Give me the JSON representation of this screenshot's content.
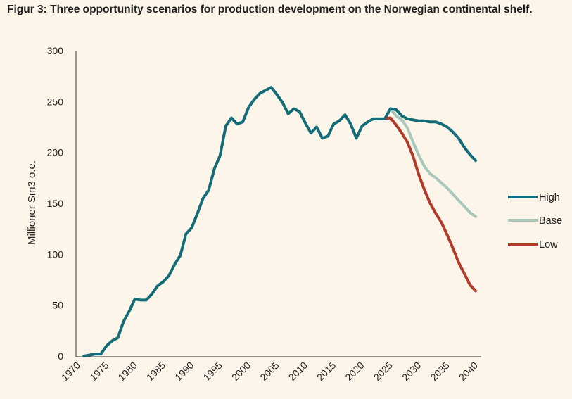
{
  "title": "Figur 3: Three opportunity scenarios for production development on the Norwegian continental shelf.",
  "chart_data": {
    "type": "line",
    "ylabel": "Millioner Sm3 o.e.",
    "xlabel": "",
    "ylim": [
      0,
      300
    ],
    "xlim": [
      1970,
      2040
    ],
    "yticks": [
      0,
      50,
      100,
      150,
      200,
      250,
      300
    ],
    "xticks": [
      1970,
      1975,
      1980,
      1985,
      1990,
      1995,
      2000,
      2005,
      2010,
      2015,
      2020,
      2025,
      2030,
      2035,
      2040
    ],
    "grid": false,
    "legend_position": "right",
    "historical": {
      "color": "#146c78",
      "x": [
        1971,
        1972,
        1973,
        1974,
        1975,
        1976,
        1977,
        1978,
        1979,
        1980,
        1981,
        1982,
        1983,
        1984,
        1985,
        1986,
        1987,
        1988,
        1989,
        1990,
        1991,
        1992,
        1993,
        1994,
        1995,
        1996,
        1997,
        1998,
        1999,
        2000,
        2001,
        2002,
        2003,
        2004,
        2005,
        2006,
        2007,
        2008,
        2009,
        2010,
        2011,
        2012,
        2013,
        2014,
        2015,
        2016,
        2017,
        2018,
        2019,
        2020,
        2021,
        2022,
        2023,
        2024
      ],
      "y": [
        0,
        1,
        2,
        2,
        10,
        15,
        18,
        34,
        44,
        56,
        55,
        55,
        61,
        69,
        73,
        79,
        90,
        99,
        120,
        126,
        140,
        155,
        163,
        184,
        197,
        226,
        234,
        228,
        230,
        244,
        252,
        258,
        261,
        264,
        257,
        249,
        238,
        243,
        240,
        229,
        219,
        225,
        214,
        216,
        228,
        231,
        237,
        228,
        214,
        226,
        230,
        233,
        233,
        233
      ]
    },
    "series": [
      {
        "name": "High",
        "color": "#146c78",
        "x": [
          2024,
          2025,
          2026,
          2027,
          2028,
          2029,
          2030,
          2031,
          2032,
          2033,
          2034,
          2035,
          2036,
          2037,
          2038,
          2039,
          2040
        ],
        "y": [
          233,
          243,
          242,
          236,
          233,
          232,
          231,
          231,
          230,
          230,
          228,
          225,
          220,
          214,
          205,
          198,
          192
        ]
      },
      {
        "name": "Base",
        "color": "#a8c8bb",
        "x": [
          2024,
          2025,
          2026,
          2027,
          2028,
          2029,
          2030,
          2031,
          2032,
          2033,
          2034,
          2035,
          2036,
          2037,
          2038,
          2039,
          2040
        ],
        "y": [
          233,
          243,
          236,
          232,
          224,
          210,
          197,
          186,
          179,
          175,
          170,
          165,
          159,
          153,
          147,
          141,
          137
        ]
      },
      {
        "name": "Low",
        "color": "#b23a2b",
        "x": [
          2024,
          2025,
          2026,
          2027,
          2028,
          2029,
          2030,
          2031,
          2032,
          2033,
          2034,
          2035,
          2036,
          2037,
          2038,
          2039,
          2040
        ],
        "y": [
          233,
          234,
          227,
          219,
          210,
          196,
          178,
          163,
          150,
          140,
          131,
          119,
          106,
          92,
          81,
          70,
          64
        ]
      }
    ]
  }
}
